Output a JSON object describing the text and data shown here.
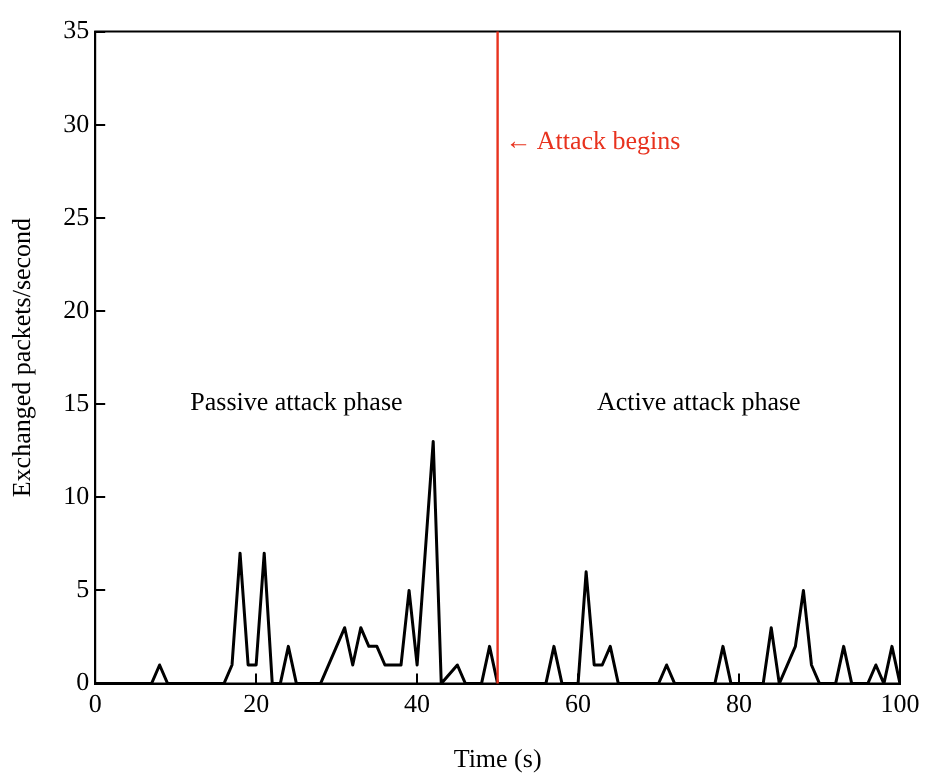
{
  "chart_data": {
    "type": "line",
    "xlabel": "Time (s)",
    "ylabel": "Exchanged packets/second",
    "x": [
      0,
      7,
      8,
      9,
      16,
      17,
      18,
      19,
      20,
      21,
      22,
      23,
      24,
      25,
      28,
      31,
      32,
      33,
      34,
      35,
      36,
      38,
      39,
      40,
      42,
      43,
      45,
      46,
      48,
      49,
      50,
      56,
      57,
      58,
      60,
      61,
      62,
      63,
      64,
      65,
      70,
      71,
      72,
      77,
      78,
      79,
      83,
      84,
      85,
      87,
      88,
      89,
      90,
      92,
      93,
      94,
      96,
      97,
      98,
      99,
      100
    ],
    "series": [
      {
        "color": "#000000",
        "values": [
          0,
          0,
          1,
          0,
          0,
          1,
          7,
          1,
          1,
          7,
          0,
          0,
          2,
          0,
          0,
          3,
          1,
          3,
          2,
          2,
          1,
          1,
          5,
          1,
          13,
          0,
          1,
          0,
          0,
          2,
          0,
          0,
          2,
          0,
          0,
          6,
          1,
          1,
          2,
          0,
          0,
          1,
          0,
          0,
          2,
          0,
          0,
          3,
          0,
          2,
          5,
          1,
          0,
          0,
          2,
          0,
          0,
          1,
          0,
          2,
          0
        ]
      }
    ],
    "xlim": [
      0,
      100
    ],
    "xticks": [
      0,
      20,
      40,
      60,
      80,
      100
    ],
    "ylim": [
      0,
      35
    ],
    "yticks": [
      0,
      5,
      10,
      15,
      20,
      25,
      30,
      35
    ],
    "grid": false,
    "legend": false,
    "marker": "none",
    "line_style": "solid",
    "ref_lines": [
      {
        "axis": "x",
        "value": 50,
        "label": "← Attack begins",
        "color": "#e8321e"
      }
    ],
    "annotations": [
      "Passive attack phase",
      "Active attack phase"
    ]
  }
}
